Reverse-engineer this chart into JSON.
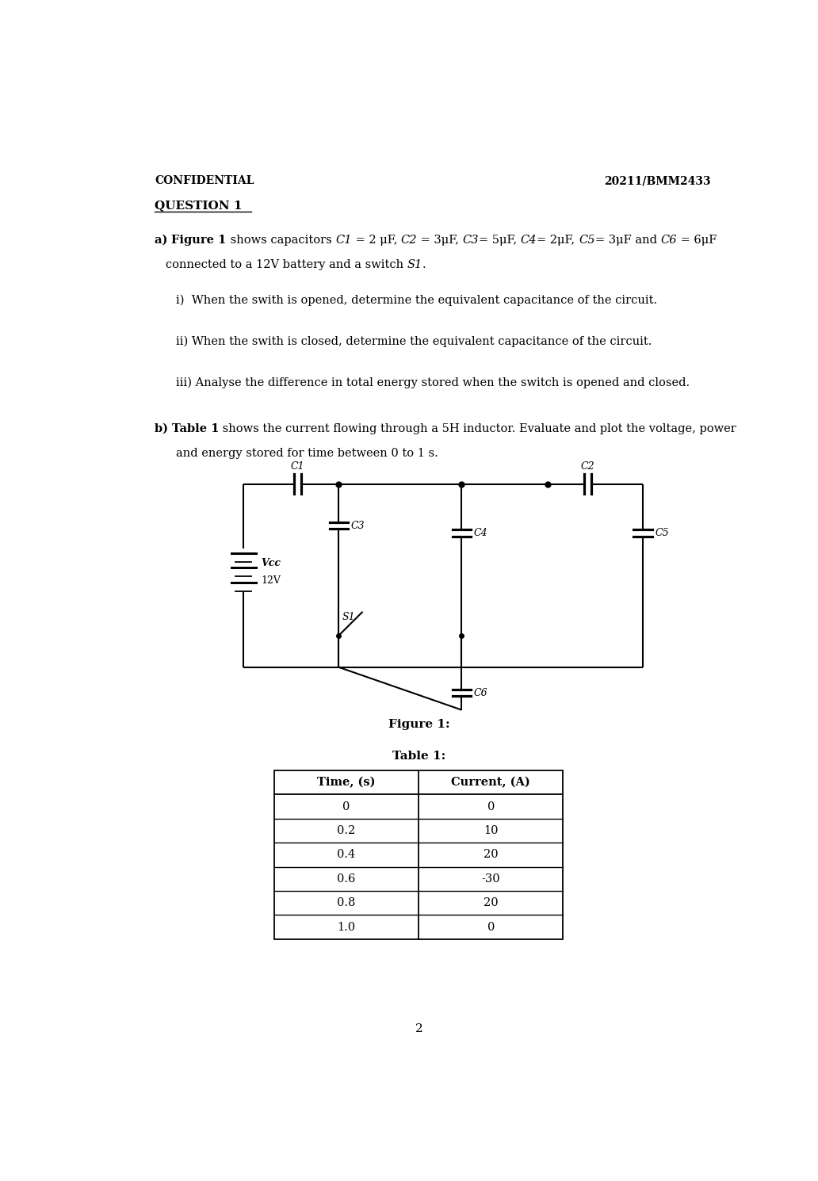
{
  "header_left": "CONFIDENTIAL",
  "header_right": "20211/BMM2433",
  "question_title": "QUESTION 1",
  "sub_i": "i)  When the swith is opened, determine the equivalent capacitance of the circuit.",
  "sub_ii": "ii) When the swith is closed, determine the equivalent capacitance of the circuit.",
  "sub_iii": "iii) Analyse the difference in total energy stored when the switch is opened and closed.",
  "part_b_line2": "and energy stored for time between 0 to 1 s.",
  "figure_label": "Figure 1:",
  "table_label": "Table 1:",
  "table_headers": [
    "Time, (s)",
    "Current, (A)"
  ],
  "table_data": [
    [
      "0",
      "0"
    ],
    [
      "0.2",
      "10"
    ],
    [
      "0.4",
      "20"
    ],
    [
      "0.6",
      "-30"
    ],
    [
      "0.8",
      "20"
    ],
    [
      "1.0",
      "0"
    ]
  ],
  "page_number": "2",
  "bg_color": "#ffffff",
  "text_color": "#000000"
}
